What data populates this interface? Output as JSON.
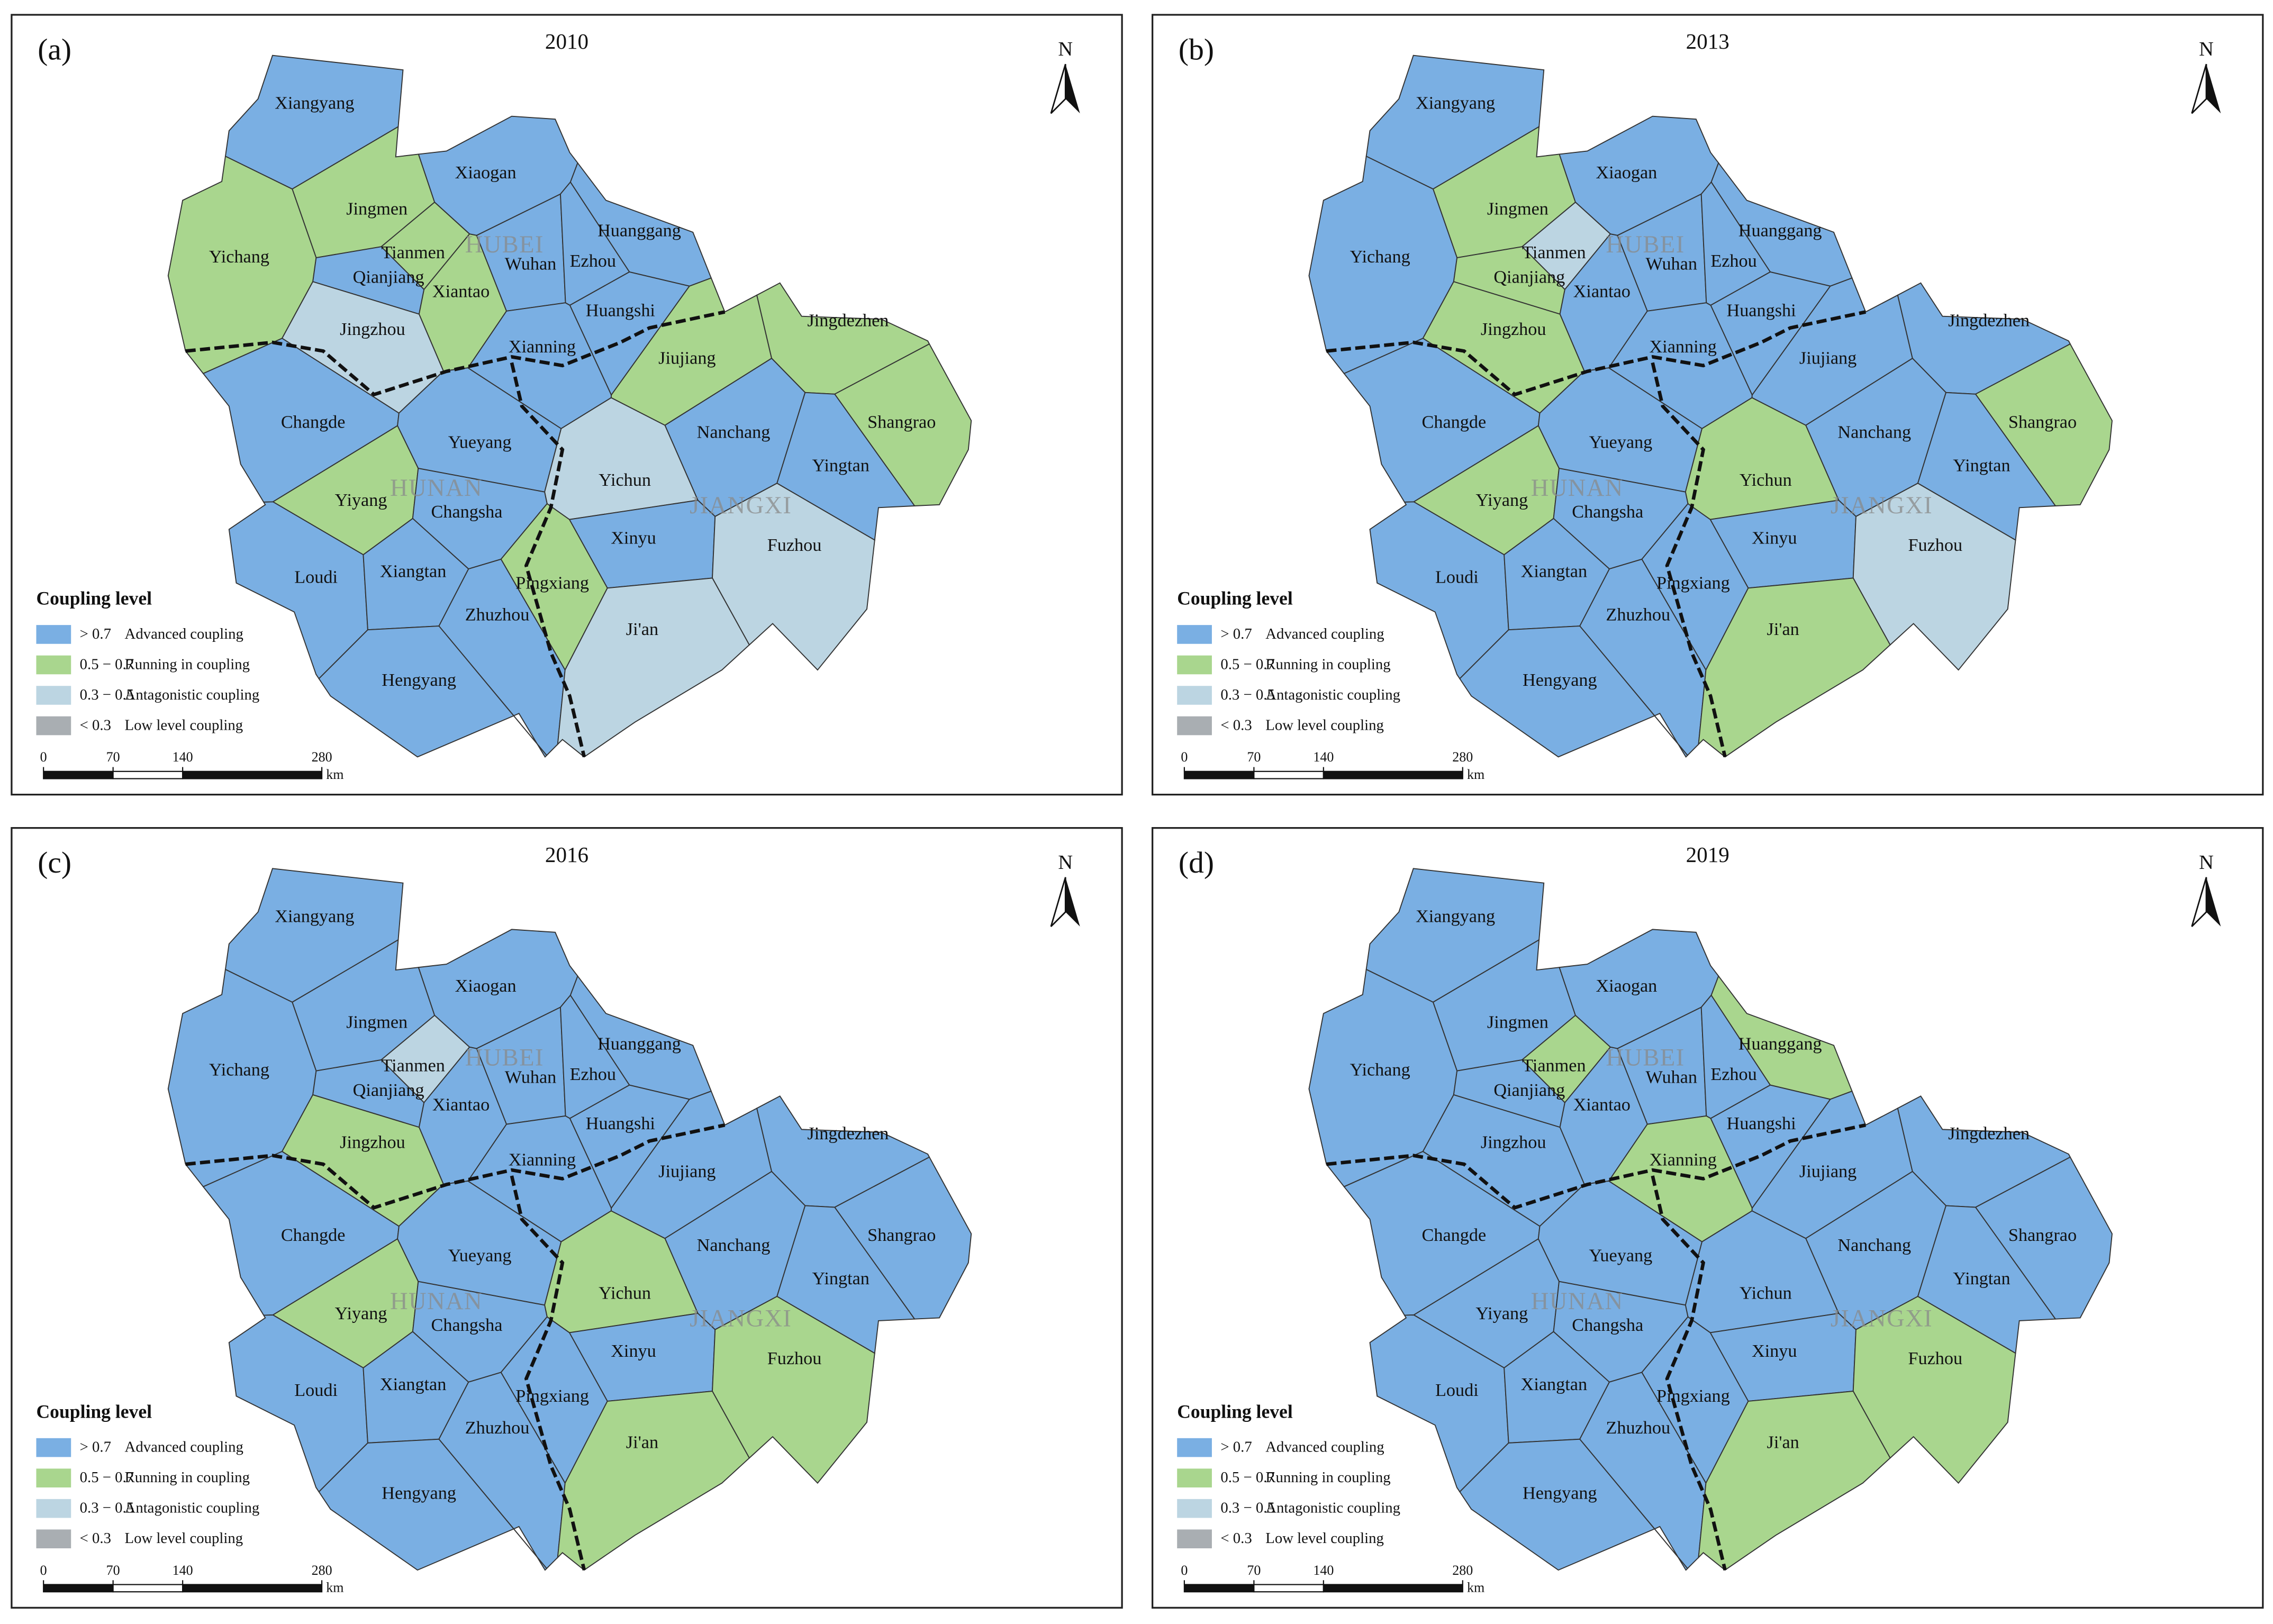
{
  "legend": {
    "title": "Coupling level",
    "items": [
      {
        "range": "> 0.7",
        "label": "Advanced coupling",
        "color": "#7aafe3"
      },
      {
        "range": "0.5 − 0.7",
        "label": "Running in coupling",
        "color": "#a9d68e"
      },
      {
        "range": "0.3 − 0.5",
        "label": "Antagonistic coupling",
        "color": "#bcd5e2"
      },
      {
        "range": "< 0.3",
        "label": "Low level coupling",
        "color": "#a9aeb2"
      }
    ]
  },
  "scale_bar": {
    "ticks": [
      0,
      70,
      140,
      280
    ],
    "unit": "km"
  },
  "north": "N",
  "provinces": [
    "HUBEI",
    "HUNAN",
    "JIANGXI"
  ],
  "cities": [
    "Xiangyang",
    "Jingmen",
    "Yichang",
    "Xiaogan",
    "Tianmen",
    "Qianjiang",
    "Xiantao",
    "Wuhan",
    "Ezhou",
    "Huanggang",
    "Huangshi",
    "Jingzhou",
    "Xianning",
    "Jiujiang",
    "Jingdezhen",
    "Shangrao",
    "Changde",
    "Yueyang",
    "Nanchang",
    "Yingtan",
    "Yichun",
    "Yiyang",
    "Changsha",
    "Xinyu",
    "Fuzhou",
    "Loudi",
    "Xiangtan",
    "Pingxiang",
    "Zhuzhou",
    "Ji'an",
    "Hengyang"
  ],
  "panels": [
    {
      "label": "(a)",
      "title": "2010",
      "levels": [
        0,
        1,
        1,
        0,
        1,
        0,
        1,
        0,
        0,
        0,
        0,
        2,
        0,
        1,
        1,
        1,
        0,
        0,
        0,
        0,
        2,
        1,
        0,
        0,
        2,
        0,
        0,
        1,
        0,
        2,
        0
      ]
    },
    {
      "label": "(b)",
      "title": "2013",
      "levels": [
        0,
        1,
        0,
        0,
        2,
        1,
        0,
        0,
        0,
        0,
        0,
        1,
        0,
        0,
        0,
        1,
        0,
        0,
        0,
        0,
        1,
        1,
        0,
        0,
        2,
        0,
        0,
        0,
        0,
        1,
        0
      ]
    },
    {
      "label": "(c)",
      "title": "2016",
      "levels": [
        0,
        0,
        0,
        0,
        2,
        0,
        0,
        0,
        0,
        0,
        0,
        1,
        0,
        0,
        0,
        0,
        0,
        0,
        0,
        0,
        1,
        1,
        0,
        0,
        1,
        0,
        0,
        0,
        0,
        1,
        0
      ]
    },
    {
      "label": "(d)",
      "title": "2019",
      "levels": [
        0,
        0,
        0,
        0,
        1,
        0,
        0,
        0,
        0,
        1,
        0,
        0,
        1,
        0,
        0,
        0,
        0,
        0,
        0,
        0,
        0,
        0,
        0,
        0,
        1,
        0,
        0,
        0,
        0,
        1,
        0
      ]
    }
  ]
}
